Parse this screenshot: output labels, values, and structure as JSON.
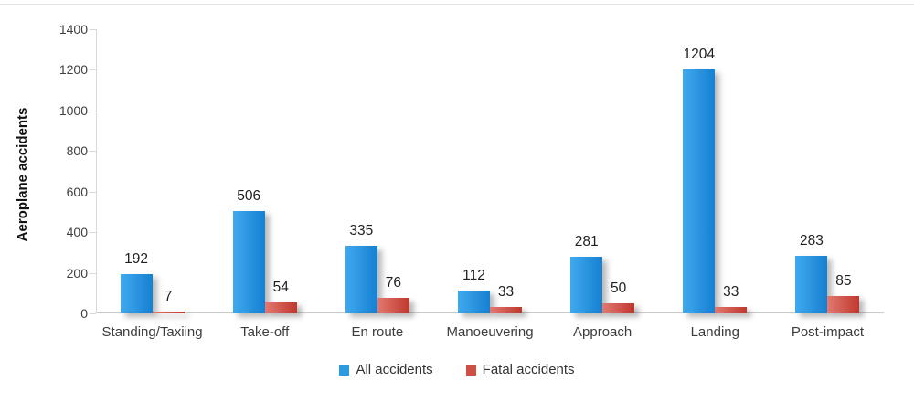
{
  "chart_data": {
    "type": "bar",
    "title": "",
    "ylabel": "Aeroplane accidents",
    "xlabel": "",
    "categories": [
      "Standing/Taxiing",
      "Take-off",
      "En route",
      "Manoeuvering",
      "Approach",
      "Landing",
      "Post-impact"
    ],
    "series": [
      {
        "name": "All accidents",
        "values": [
          192,
          506,
          335,
          112,
          281,
          1204,
          283
        ],
        "gradient": [
          "#3fa9ee",
          "#1680d2"
        ],
        "legend_color": "#2b9ade"
      },
      {
        "name": "Fatal accidents",
        "values": [
          7,
          54,
          76,
          33,
          50,
          33,
          85
        ],
        "gradient": [
          "#e27970",
          "#bf382d"
        ],
        "legend_color": "#d04f44"
      }
    ],
    "ylim": [
      0,
      1400
    ],
    "yticks": [
      0,
      200,
      400,
      600,
      800,
      1000,
      1200,
      1400
    ],
    "grid": false,
    "legend_position": "bottom",
    "bar_value_labels": true
  },
  "colors": {
    "background": "#ffffff",
    "axis_line": "#d9d9d9",
    "baseline": "#c9c9c9",
    "tick_text": "#404040",
    "value_text": "#1f1f1f",
    "category_text": "#3d3d3d",
    "legend_text": "#333333",
    "top_border": "#e3e3e3"
  }
}
